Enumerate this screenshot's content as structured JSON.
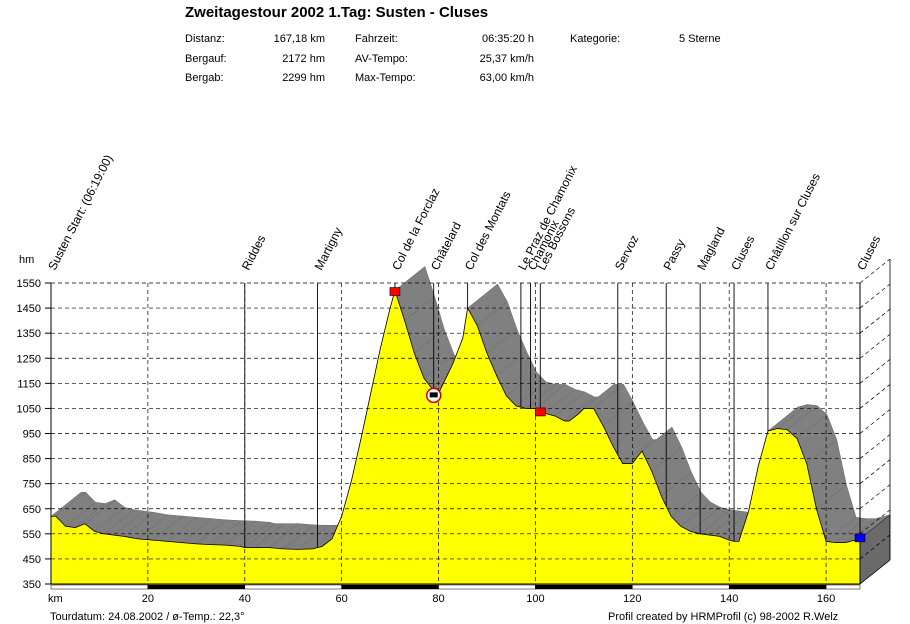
{
  "header": {
    "title": "Zweitagestour 2002 1.Tag: Susten - Cluses",
    "stats": {
      "distance_label": "Distanz:",
      "distance": "167,18 km",
      "ascent_label": "Bergauf:",
      "ascent": "2172 hm",
      "descent_label": "Bergab:",
      "descent": "2299 hm",
      "time_label": "Fahrzeit:",
      "time": "06:35:20 h",
      "avg_label": "AV-Tempo:",
      "avg": "25,37 km/h",
      "max_label": "Max-Tempo:",
      "max": "63,00 km/h",
      "category_label": "Kategorie:",
      "category": "5 Sterne"
    }
  },
  "footer": {
    "tour_info": "Tourdatum: 24.08.2002  /  ø-Temp.: 22,3°",
    "credit": "Profil created by HRMProfil (c) 98-2002 R.Welz"
  },
  "colors": {
    "profile_fill": "#ffff00",
    "side_fill": "#808080",
    "start_marker": "#ff0000",
    "end_marker": "#0000ff"
  },
  "chart_data": {
    "type": "area",
    "ylabel": "hm",
    "xlabel": "km",
    "xlim": [
      0,
      167
    ],
    "ylim": [
      350,
      1550
    ],
    "x_ticks": [
      20,
      40,
      60,
      80,
      100,
      120,
      140,
      160
    ],
    "y_ticks": [
      350,
      450,
      550,
      650,
      750,
      850,
      950,
      1050,
      1150,
      1250,
      1350,
      1450,
      1550
    ],
    "series": [
      {
        "x": [
          0,
          1,
          3,
          5,
          7,
          9,
          11,
          13,
          15,
          18,
          21,
          24,
          27,
          30,
          33,
          36,
          39,
          40,
          42,
          45,
          48,
          51,
          54,
          56,
          58,
          60,
          62,
          64,
          66,
          68,
          70,
          71,
          73,
          75,
          77,
          79,
          80,
          81,
          83,
          85,
          86,
          88,
          90,
          92,
          94,
          96,
          98,
          100,
          102,
          104,
          106,
          107,
          109,
          110,
          112,
          114,
          116,
          118,
          120,
          122,
          124,
          126,
          128,
          130,
          132,
          134,
          136,
          138,
          140,
          141,
          142,
          144,
          146,
          148,
          150,
          152,
          154,
          156,
          158,
          160,
          162,
          164,
          167
        ],
        "y": [
          620,
          620,
          580,
          575,
          590,
          560,
          550,
          545,
          540,
          530,
          525,
          520,
          515,
          510,
          507,
          505,
          500,
          495,
          495,
          495,
          490,
          488,
          490,
          500,
          530,
          620,
          760,
          930,
          1110,
          1290,
          1450,
          1520,
          1400,
          1270,
          1170,
          1120,
          1110,
          1150,
          1230,
          1330,
          1450,
          1380,
          1270,
          1180,
          1100,
          1060,
          1050,
          1050,
          1030,
          1020,
          1000,
          1000,
          1030,
          1050,
          1050,
          980,
          900,
          830,
          830,
          880,
          800,
          700,
          620,
          580,
          560,
          550,
          545,
          540,
          525,
          520,
          520,
          640,
          820,
          960,
          970,
          965,
          930,
          830,
          650,
          520,
          515,
          515,
          530
        ]
      }
    ],
    "waypoints": [
      {
        "name": "Susten Start: (06:19:00)",
        "km": 0
      },
      {
        "name": "Riddes",
        "km": 40
      },
      {
        "name": "Martigny",
        "km": 55
      },
      {
        "name": "Col de la Forclaz",
        "km": 71
      },
      {
        "name": "Châtelard",
        "km": 79
      },
      {
        "name": "Col des Montats",
        "km": 86
      },
      {
        "name": "Le Praz de Chamonix",
        "km": 97
      },
      {
        "name": "Chamonix",
        "km": 99
      },
      {
        "name": "Les Bossons",
        "km": 101
      },
      {
        "name": "Servoz",
        "km": 117
      },
      {
        "name": "Passy",
        "km": 127
      },
      {
        "name": "Magland",
        "km": 134
      },
      {
        "name": "Cluses",
        "km": 141
      },
      {
        "name": "Châtillon sur Cluses",
        "km": 148
      },
      {
        "name": "Cluses",
        "km": 167
      }
    ]
  }
}
